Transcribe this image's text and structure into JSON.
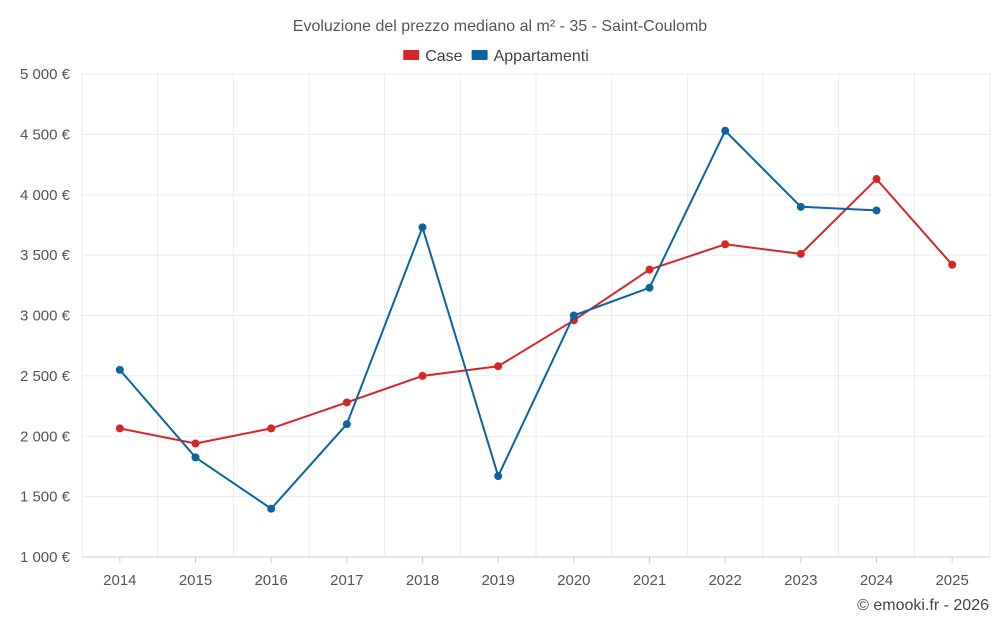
{
  "chart_data": {
    "type": "line",
    "title": "Evoluzione del prezzo mediano al m² - 35 - Saint-Coulomb",
    "xlabel": "",
    "ylabel": "",
    "categories": [
      "2014",
      "2015",
      "2016",
      "2017",
      "2018",
      "2019",
      "2020",
      "2021",
      "2022",
      "2023",
      "2024",
      "2025"
    ],
    "ylim": [
      1000,
      5000
    ],
    "yticks": [
      1000,
      1500,
      2000,
      2500,
      3000,
      3500,
      4000,
      4500,
      5000
    ],
    "ytick_labels": [
      "1 000 €",
      "1 500 €",
      "2 000 €",
      "2 500 €",
      "3 000 €",
      "3 500 €",
      "4 000 €",
      "4 500 €",
      "5 000 €"
    ],
    "grid": true,
    "legend_position": "top-center",
    "series": [
      {
        "name": "Case",
        "color": "#d62728",
        "values": [
          2065,
          1940,
          2065,
          2280,
          2500,
          2580,
          2960,
          3380,
          3590,
          3510,
          4130,
          3420
        ]
      },
      {
        "name": "Appartamenti",
        "color": "#0b63a0",
        "values": [
          2550,
          1825,
          1400,
          2100,
          3730,
          1670,
          3000,
          3230,
          4530,
          3900,
          3870,
          null
        ]
      }
    ]
  },
  "credit": "© emooki.fr - 2026"
}
